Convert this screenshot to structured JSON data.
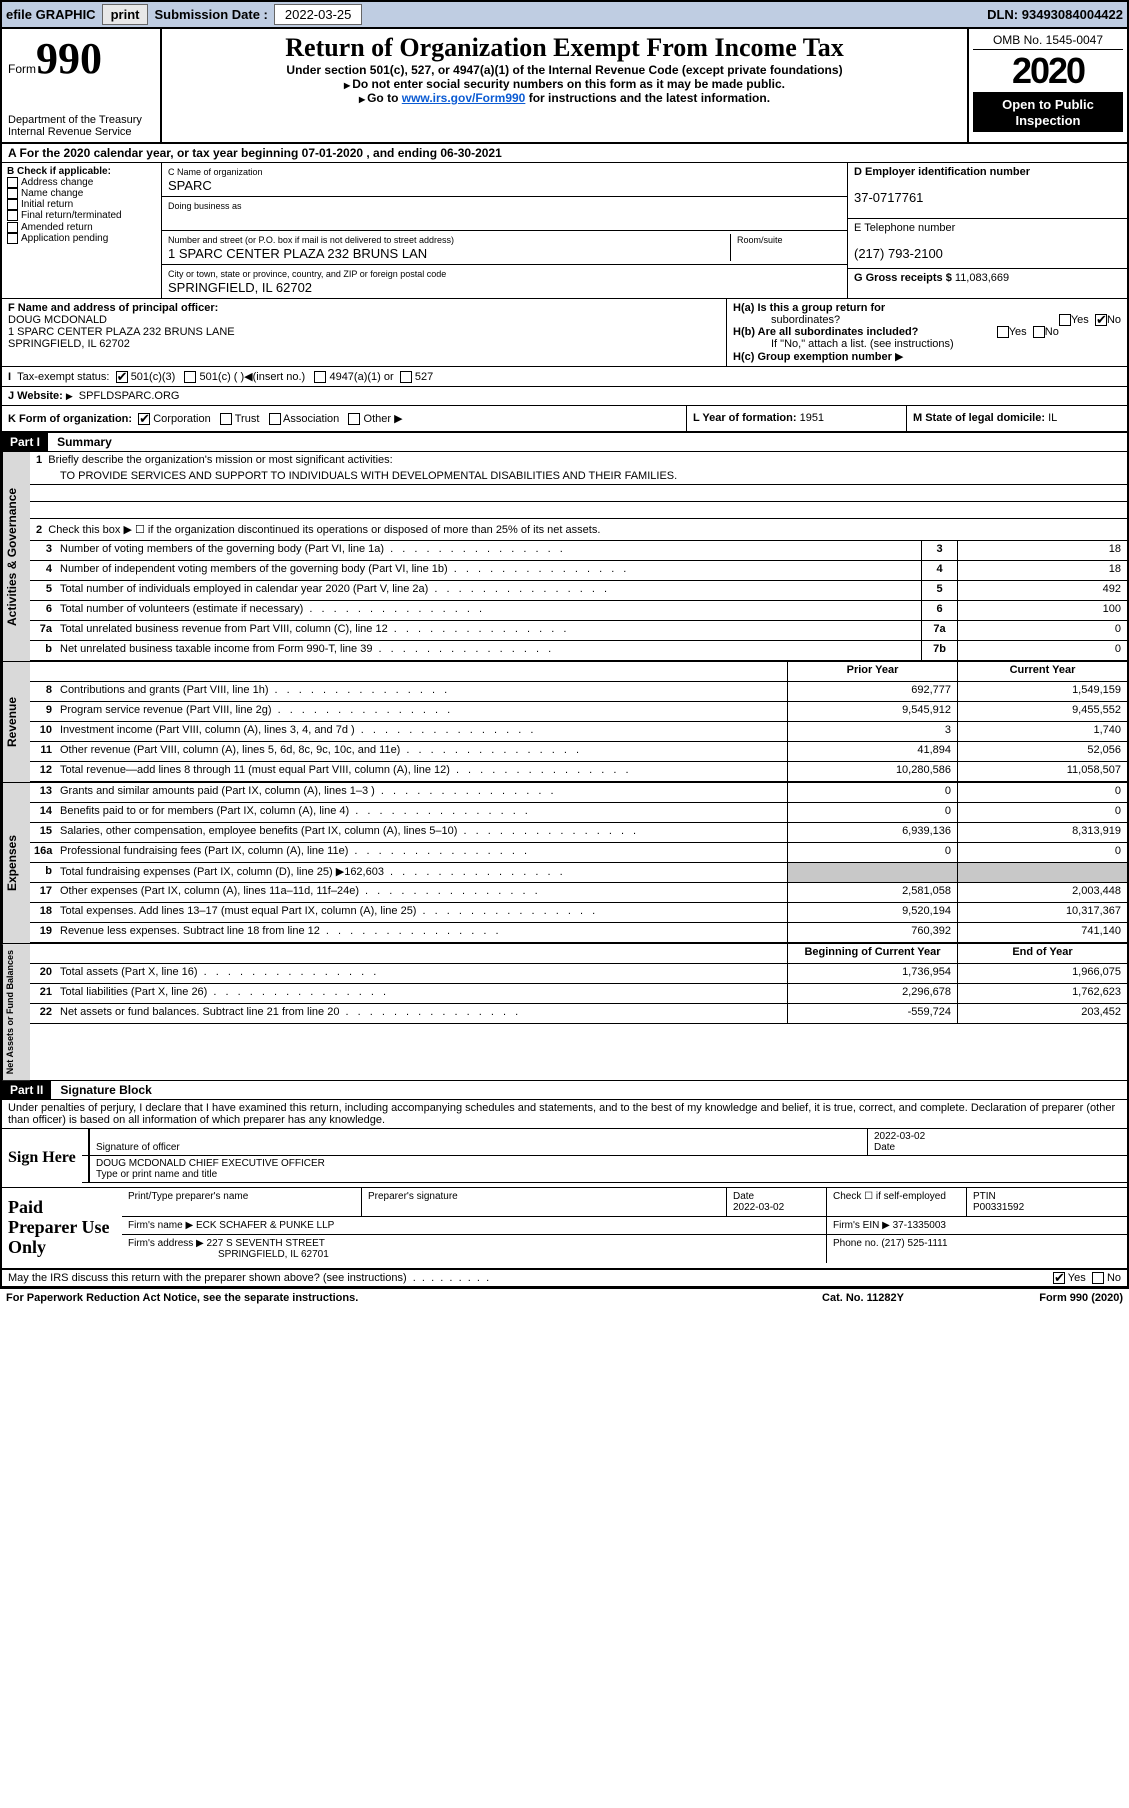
{
  "topbar": {
    "efile_label": "efile GRAPHIC",
    "print_btn": "print",
    "submission_label": "Submission Date :",
    "submission_date": "2022-03-25",
    "dln_label": "DLN:",
    "dln": "93493084004422"
  },
  "header": {
    "form_prefix": "Form",
    "form_number": "990",
    "dept": "Department of the Treasury",
    "irs": "Internal Revenue Service",
    "title": "Return of Organization Exempt From Income Tax",
    "subtitle": "Under section 501(c), 527, or 4947(a)(1) of the Internal Revenue Code (except private foundations)",
    "instr1": "Do not enter social security numbers on this form as it may be made public.",
    "instr2_pre": "Go to ",
    "instr2_link": "www.irs.gov/Form990",
    "instr2_post": " for instructions and the latest information.",
    "omb": "OMB No. 1545-0047",
    "year": "2020",
    "open1": "Open to Public",
    "open2": "Inspection"
  },
  "row_a": "A For the 2020 calendar year, or tax year beginning 07-01-2020   , and ending 06-30-2021",
  "section_b": {
    "label": "B Check if applicable:",
    "items": [
      "Address change",
      "Name change",
      "Initial return",
      "Final return/terminated",
      "Amended return",
      "Application pending"
    ]
  },
  "section_c": {
    "name_lbl": "C Name of organization",
    "name": "SPARC",
    "dba_lbl": "Doing business as",
    "dba": "",
    "addr_lbl": "Number and street (or P.O. box if mail is not delivered to street address)",
    "room_lbl": "Room/suite",
    "addr": "1 SPARC CENTER PLAZA 232 BRUNS LAN",
    "city_lbl": "City or town, state or province, country, and ZIP or foreign postal code",
    "city": "SPRINGFIELD, IL  62702"
  },
  "section_d": {
    "ein_lbl": "D Employer identification number",
    "ein": "37-0717761",
    "tel_lbl": "E Telephone number",
    "tel": "(217) 793-2100",
    "gross_lbl": "G Gross receipts $",
    "gross": "11,083,669"
  },
  "section_f": {
    "lbl": "F  Name and address of principal officer:",
    "name": "DOUG MCDONALD",
    "addr1": "1 SPARC CENTER PLAZA 232 BRUNS LANE",
    "addr2": "SPRINGFIELD, IL  62702"
  },
  "section_h": {
    "ha_lbl": "H(a)  Is this a group return for",
    "ha_sub": "subordinates?",
    "hb_lbl": "H(b)  Are all subordinates included?",
    "hb_note": "If \"No,\" attach a list. (see instructions)",
    "hc_lbl": "H(c)  Group exemption number",
    "yes": "Yes",
    "no": "No"
  },
  "row_i": {
    "lbl": "Tax-exempt status:",
    "o1": "501(c)(3)",
    "o2": "501(c) (  )",
    "o2_hint": "(insert no.)",
    "o3": "4947(a)(1) or",
    "o4": "527"
  },
  "row_j": {
    "lbl": "J   Website:",
    "val": "SPFLDSPARC.ORG"
  },
  "row_k": {
    "lbl": "K Form of organization:",
    "opts": [
      "Corporation",
      "Trust",
      "Association",
      "Other"
    ]
  },
  "row_l": {
    "lbl": "L Year of formation:",
    "val": "1951"
  },
  "row_m": {
    "lbl": "M State of legal domicile:",
    "val": "IL"
  },
  "part1": {
    "badge": "Part I",
    "title": "Summary",
    "line1_lbl": "Briefly describe the organization's mission or most significant activities:",
    "line1_val": "TO PROVIDE SERVICES AND SUPPORT TO INDIVIDUALS WITH DEVELOPMENTAL DISABILITIES AND THEIR FAMILIES.",
    "line2": "Check this box ▶ ☐  if the organization discontinued its operations or disposed of more than 25% of its net assets.",
    "sidebars": {
      "gov": "Activities & Governance",
      "rev": "Revenue",
      "exp": "Expenses",
      "net": "Net Assets or Fund Balances"
    },
    "lines_single": [
      {
        "n": "3",
        "d": "Number of voting members of the governing body (Part VI, line 1a)",
        "box": "3",
        "v": "18"
      },
      {
        "n": "4",
        "d": "Number of independent voting members of the governing body (Part VI, line 1b)",
        "box": "4",
        "v": "18"
      },
      {
        "n": "5",
        "d": "Total number of individuals employed in calendar year 2020 (Part V, line 2a)",
        "box": "5",
        "v": "492"
      },
      {
        "n": "6",
        "d": "Total number of volunteers (estimate if necessary)",
        "box": "6",
        "v": "100"
      },
      {
        "n": "7a",
        "d": "Total unrelated business revenue from Part VIII, column (C), line 12",
        "box": "7a",
        "v": "0"
      },
      {
        "n": "b",
        "d": "Net unrelated business taxable income from Form 990-T, line 39",
        "box": "7b",
        "v": "0"
      }
    ],
    "col_hdr": {
      "prior": "Prior Year",
      "current": "Current Year"
    },
    "lines_rev": [
      {
        "n": "8",
        "d": "Contributions and grants (Part VIII, line 1h)",
        "p": "692,777",
        "c": "1,549,159"
      },
      {
        "n": "9",
        "d": "Program service revenue (Part VIII, line 2g)",
        "p": "9,545,912",
        "c": "9,455,552"
      },
      {
        "n": "10",
        "d": "Investment income (Part VIII, column (A), lines 3, 4, and 7d )",
        "p": "3",
        "c": "1,740"
      },
      {
        "n": "11",
        "d": "Other revenue (Part VIII, column (A), lines 5, 6d, 8c, 9c, 10c, and 11e)",
        "p": "41,894",
        "c": "52,056"
      },
      {
        "n": "12",
        "d": "Total revenue—add lines 8 through 11 (must equal Part VIII, column (A), line 12)",
        "p": "10,280,586",
        "c": "11,058,507"
      }
    ],
    "lines_exp": [
      {
        "n": "13",
        "d": "Grants and similar amounts paid (Part IX, column (A), lines 1–3 )",
        "p": "0",
        "c": "0"
      },
      {
        "n": "14",
        "d": "Benefits paid to or for members (Part IX, column (A), line 4)",
        "p": "0",
        "c": "0"
      },
      {
        "n": "15",
        "d": "Salaries, other compensation, employee benefits (Part IX, column (A), lines 5–10)",
        "p": "6,939,136",
        "c": "8,313,919"
      },
      {
        "n": "16a",
        "d": "Professional fundraising fees (Part IX, column (A), line 11e)",
        "p": "0",
        "c": "0"
      },
      {
        "n": "b",
        "d": "Total fundraising expenses (Part IX, column (D), line 25) ▶162,603",
        "p": "",
        "c": "",
        "shade": true
      },
      {
        "n": "17",
        "d": "Other expenses (Part IX, column (A), lines 11a–11d, 11f–24e)",
        "p": "2,581,058",
        "c": "2,003,448"
      },
      {
        "n": "18",
        "d": "Total expenses. Add lines 13–17 (must equal Part IX, column (A), line 25)",
        "p": "9,520,194",
        "c": "10,317,367"
      },
      {
        "n": "19",
        "d": "Revenue less expenses. Subtract line 18 from line 12",
        "p": "760,392",
        "c": "741,140"
      }
    ],
    "net_hdr": {
      "b": "Beginning of Current Year",
      "e": "End of Year"
    },
    "lines_net": [
      {
        "n": "20",
        "d": "Total assets (Part X, line 16)",
        "p": "1,736,954",
        "c": "1,966,075"
      },
      {
        "n": "21",
        "d": "Total liabilities (Part X, line 26)",
        "p": "2,296,678",
        "c": "1,762,623"
      },
      {
        "n": "22",
        "d": "Net assets or fund balances. Subtract line 21 from line 20",
        "p": "-559,724",
        "c": "203,452"
      }
    ]
  },
  "part2": {
    "badge": "Part II",
    "title": "Signature Block",
    "penalty": "Under penalties of perjury, I declare that I have examined this return, including accompanying schedules and statements, and to the best of my knowledge and belief, it is true, correct, and complete. Declaration of preparer (other than officer) is based on all information of which preparer has any knowledge."
  },
  "sign": {
    "here": "Sign Here",
    "sig_lbl": "Signature of officer",
    "date_lbl": "Date",
    "date_val": "2022-03-02",
    "name": "DOUG MCDONALD  CHIEF EXECUTIVE OFFICER",
    "type_lbl": "Type or print name and title"
  },
  "prep": {
    "title": "Paid Preparer Use Only",
    "h1": "Print/Type preparer's name",
    "h2": "Preparer's signature",
    "h3_lbl": "Date",
    "h3_val": "2022-03-02",
    "h4_lbl": "Check ☐ if self-employed",
    "h5_lbl": "PTIN",
    "h5_val": "P00331592",
    "firm_name_lbl": "Firm's name   ▶",
    "firm_name": "ECK SCHAFER & PUNKE LLP",
    "firm_ein_lbl": "Firm's EIN ▶",
    "firm_ein": "37-1335003",
    "firm_addr_lbl": "Firm's address ▶",
    "firm_addr1": "227 S SEVENTH STREET",
    "firm_addr2": "SPRINGFIELD, IL  62701",
    "phone_lbl": "Phone no.",
    "phone": "(217) 525-1111"
  },
  "footer": {
    "discuss": "May the IRS discuss this return with the preparer shown above? (see instructions)",
    "yes": "Yes",
    "no": "No",
    "paperwork": "For Paperwork Reduction Act Notice, see the separate instructions.",
    "cat": "Cat. No. 11282Y",
    "form": "Form 990 (2020)"
  }
}
